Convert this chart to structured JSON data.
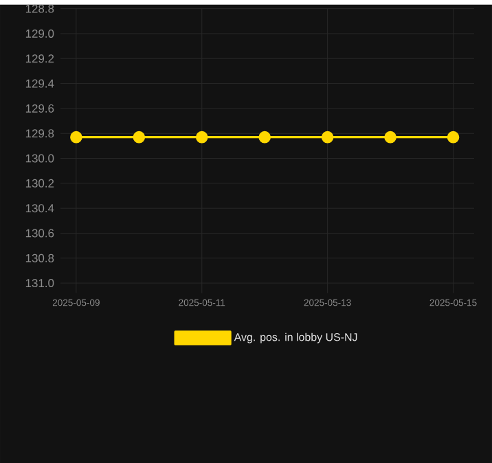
{
  "chart_data": {
    "type": "line",
    "x": [
      "2025-05-09",
      "2025-05-10",
      "2025-05-11",
      "2025-05-12",
      "2025-05-13",
      "2025-05-14",
      "2025-05-15"
    ],
    "series": [
      {
        "name": "Avg. pos. in lobby US-NJ",
        "color": "#ffd700",
        "values": [
          129.83,
          129.83,
          129.83,
          129.83,
          129.83,
          129.83,
          129.83
        ]
      }
    ],
    "xlim": [
      "2025-05-08T18:00",
      "2025-05-15T08:00"
    ],
    "xticks": [
      "2025-05-09",
      "2025-05-11",
      "2025-05-13",
      "2025-05-15"
    ],
    "ylim": [
      131.08,
      128.8
    ],
    "yticks": [
      128.8,
      {
        "value": 129,
        "label": "129.0"
      },
      129.2,
      129.4,
      129.6,
      129.8,
      {
        "value": 130,
        "label": "130.0"
      },
      130.2,
      130.4,
      130.6,
      130.8,
      {
        "value": 131,
        "label": "131.0"
      }
    ],
    "grid": true,
    "legend": "bottom",
    "marker": "circle",
    "line_style": "solid"
  }
}
